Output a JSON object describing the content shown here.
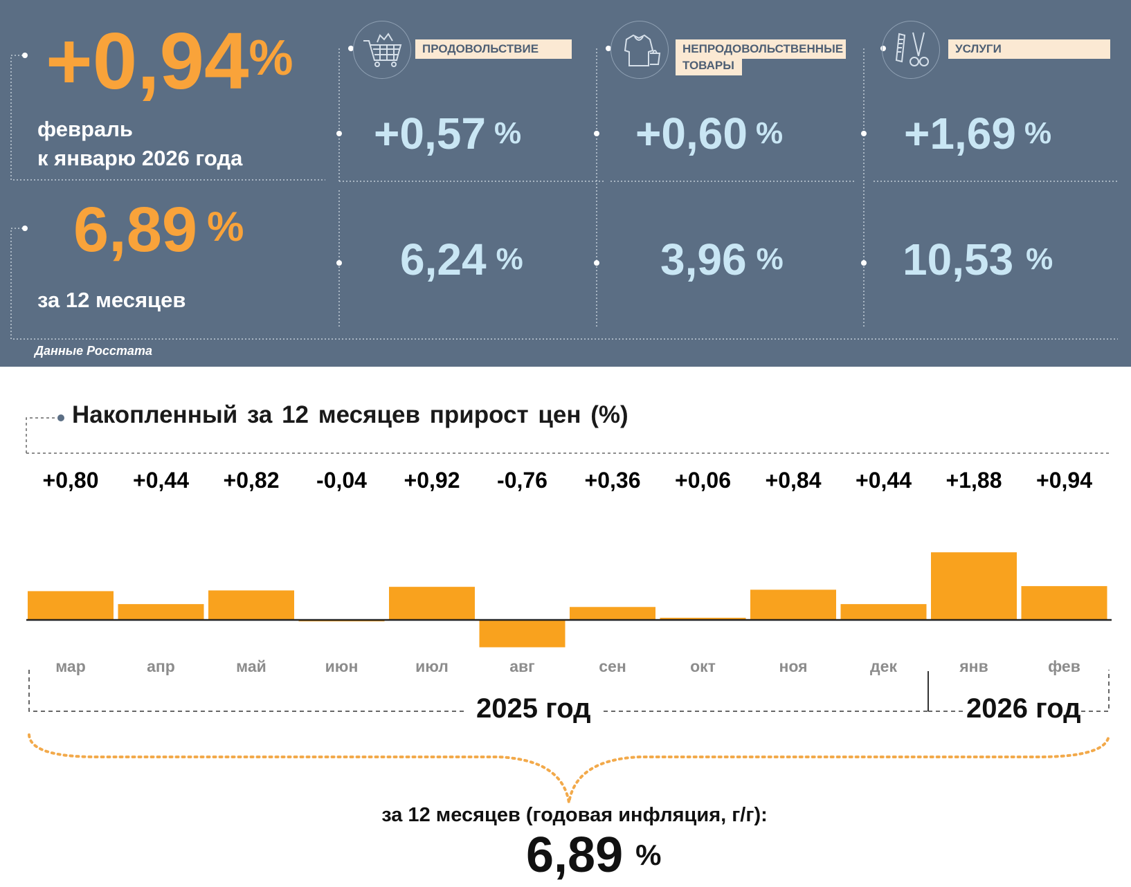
{
  "summary": {
    "month_value": "+0,94",
    "month_unit": "%",
    "month_label_line1": "февраль",
    "month_label_line2": "к январю 2026 года",
    "annual_value": "6,89",
    "annual_unit": "%",
    "annual_label": "за 12 месяцев",
    "source": "Данные Росстата"
  },
  "categories": [
    {
      "label_line1": "ПРОДОВОЛЬСТВИЕ",
      "label_line2": "",
      "icon": "shopping-cart-icon",
      "month": "+0,57",
      "annual": "6,24",
      "unit": "%"
    },
    {
      "label_line1": "НЕПРОДОВОЛЬСТВЕННЫЕ",
      "label_line2": "ТОВАРЫ",
      "icon": "clothes-icon",
      "month": "+0,60",
      "annual": "3,96",
      "unit": "%"
    },
    {
      "label_line1": "УСЛУГИ",
      "label_line2": "",
      "icon": "scissors-comb-icon",
      "month": "+1,69",
      "annual": "10,53",
      "unit": "%"
    }
  ],
  "chart_data": {
    "type": "bar",
    "title": "Накопленный за 12 месяцев прирост цен (%)",
    "categories": [
      "мар",
      "апр",
      "май",
      "июн",
      "июл",
      "авг",
      "сен",
      "окт",
      "ноя",
      "дек",
      "янв",
      "фев"
    ],
    "values": [
      0.8,
      0.44,
      0.82,
      -0.04,
      0.92,
      -0.76,
      0.36,
      0.06,
      0.84,
      0.44,
      1.88,
      0.94
    ],
    "labels": [
      "+0,80",
      "+0,44",
      "+0,82",
      "-0,04",
      "+0,92",
      "-0,76",
      "+0,36",
      "+0,06",
      "+0,84",
      "+0,44",
      "+1,88",
      "+0,94"
    ],
    "year_groups": [
      {
        "label": "2025 год",
        "from": "мар",
        "to": "дек"
      },
      {
        "label": "2026 год",
        "from": "янв",
        "to": "фев"
      }
    ],
    "bar_color": "#f9a21e"
  },
  "footer": {
    "label": "за 12 месяцев (годовая инфляция, г/г):",
    "value": "6,89",
    "unit": "%"
  },
  "colors": {
    "panel": "#5b6e84",
    "orange": "#f9a33a",
    "light_blue": "#c9e6f4",
    "label_bg": "#fbe9d3"
  }
}
